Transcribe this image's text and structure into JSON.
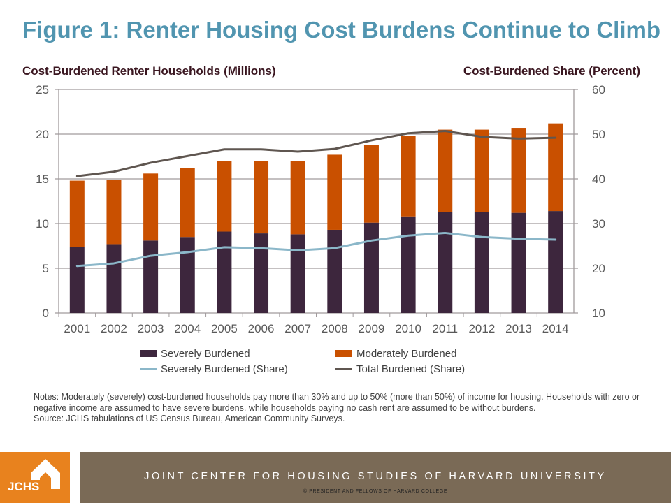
{
  "title": "Figure 1: Renter Housing Cost Burdens Continue to Climb",
  "chart_data": {
    "type": "bar",
    "stacked": true,
    "title": "Figure 1: Renter Housing Cost Burdens Continue to Climb",
    "ylabel": "Cost-Burdened Renter Households (Millions)",
    "y2label": "Cost-Burdened Share (Percent)",
    "ylim": [
      0,
      25
    ],
    "y2lim": [
      10,
      60
    ],
    "yticks": [
      "0",
      "5",
      "10",
      "15",
      "20",
      "25"
    ],
    "y2ticks": [
      "10",
      "20",
      "30",
      "40",
      "50",
      "60"
    ],
    "grid": true,
    "legend_position": "bottom",
    "categories": [
      "2001",
      "2002",
      "2003",
      "2004",
      "2005",
      "2006",
      "2007",
      "2008",
      "2009",
      "2010",
      "2011",
      "2012",
      "2013",
      "2014"
    ],
    "series": [
      {
        "name": "Severely Burdened",
        "type": "bar",
        "axis": "left",
        "color": "#3d263d",
        "values": [
          7.4,
          7.7,
          8.1,
          8.5,
          9.1,
          8.9,
          8.8,
          9.3,
          10.1,
          10.8,
          11.3,
          11.3,
          11.2,
          11.4
        ]
      },
      {
        "name": "Moderately Burdened",
        "type": "bar",
        "axis": "left",
        "color": "#c95000",
        "values": [
          7.4,
          7.2,
          7.5,
          7.7,
          7.9,
          8.1,
          8.2,
          8.4,
          8.7,
          9.0,
          9.2,
          9.2,
          9.5,
          9.8
        ]
      },
      {
        "name": "Severely Burdened (Share)",
        "type": "line",
        "axis": "right",
        "color": "#8bb7c9",
        "values": [
          20.5,
          21.1,
          22.8,
          23.6,
          24.7,
          24.5,
          24.0,
          24.5,
          26.2,
          27.3,
          27.9,
          27.0,
          26.6,
          26.4
        ]
      },
      {
        "name": "Total Burdened (Share)",
        "type": "line",
        "axis": "right",
        "color": "#5f5650",
        "values": [
          40.6,
          41.6,
          43.6,
          45.1,
          46.6,
          46.6,
          46.1,
          46.7,
          48.6,
          50.2,
          50.7,
          49.4,
          49.0,
          49.2
        ]
      }
    ]
  },
  "notes": [
    "Notes: Moderately (severely) cost-burdened households pay more than 30% and up to 50% (more than 50%) of income for housing. Households with zero or negative income are assumed to have severe burdens, while households paying no cash rent are assumed to be without burdens.",
    "Source: JCHS tabulations of US Census Bureau, American Community Surveys."
  ],
  "footer": {
    "logo_text": "JCHS",
    "main": "JOINT CENTER FOR HOUSING STUDIES OF HARVARD UNIVERSITY",
    "sub": "© PRESIDENT AND FELLOWS OF HARVARD COLLEGE",
    "colors": {
      "logo": "#e8821e",
      "bar": "#7a6a56"
    }
  }
}
